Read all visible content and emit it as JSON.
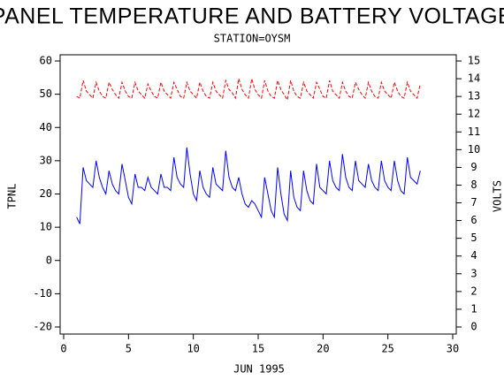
{
  "chart_data": {
    "type": "line",
    "title": "PANEL TEMPERATURE AND BATTERY VOLTAGE",
    "subtitle": "STATION=OYSM",
    "x_label": "JUN 1995",
    "y_label": "TPNL",
    "y2_label": "VOLTS",
    "xlim": [
      0,
      30
    ],
    "xticks": [
      0,
      5,
      10,
      15,
      20,
      25,
      30
    ],
    "ylim": [
      -20,
      60
    ],
    "yticks": [
      -20,
      -10,
      0,
      10,
      20,
      30,
      40,
      50,
      60
    ],
    "y2lim": [
      0,
      15
    ],
    "y2ticks": [
      0,
      1,
      2,
      3,
      4,
      5,
      6,
      7,
      8,
      9,
      10,
      11,
      12,
      13,
      14,
      15
    ],
    "x": [
      1,
      1.25,
      1.5,
      1.75,
      2,
      2.25,
      2.5,
      2.75,
      3,
      3.25,
      3.5,
      3.75,
      4,
      4.25,
      4.5,
      4.75,
      5,
      5.25,
      5.5,
      5.75,
      6,
      6.25,
      6.5,
      6.75,
      7,
      7.25,
      7.5,
      7.75,
      8,
      8.25,
      8.5,
      8.75,
      9,
      9.25,
      9.5,
      9.75,
      10,
      10.25,
      10.5,
      10.75,
      11,
      11.25,
      11.5,
      11.75,
      12,
      12.25,
      12.5,
      12.75,
      13,
      13.25,
      13.5,
      13.75,
      14,
      14.25,
      14.5,
      14.75,
      15,
      15.25,
      15.5,
      15.75,
      16,
      16.25,
      16.5,
      16.75,
      17,
      17.25,
      17.5,
      17.75,
      18,
      18.25,
      18.5,
      18.75,
      19,
      19.25,
      19.5,
      19.75,
      20,
      20.25,
      20.5,
      20.75,
      21,
      21.25,
      21.5,
      21.75,
      22,
      22.25,
      22.5,
      22.75,
      23,
      23.25,
      23.5,
      23.75,
      24,
      24.25,
      24.5,
      24.75,
      25,
      25.25,
      25.5,
      25.75,
      26,
      26.25,
      26.5,
      26.75,
      27,
      27.25,
      27.5
    ],
    "series": [
      {
        "name": "TPNL",
        "color": "#0000ff",
        "dashed": false,
        "values": [
          13,
          11,
          28,
          24,
          23,
          22,
          30,
          25,
          22,
          20,
          27,
          23,
          21,
          20,
          29,
          24,
          19,
          17,
          26,
          22,
          22,
          21,
          25,
          22,
          21,
          20,
          26,
          22,
          22,
          21,
          31,
          25,
          23,
          22,
          34,
          26,
          20,
          18,
          27,
          22,
          20,
          19,
          28,
          23,
          22,
          21,
          33,
          25,
          22,
          21,
          25,
          20,
          17,
          16,
          18,
          17,
          15,
          13,
          25,
          20,
          15,
          13,
          28,
          20,
          14,
          12,
          27,
          19,
          16,
          15,
          27,
          21,
          18,
          17,
          29,
          22,
          21,
          20,
          30,
          24,
          22,
          21,
          32,
          25,
          22,
          21,
          30,
          24,
          23,
          22,
          29,
          24,
          22,
          21,
          30,
          24,
          22,
          21,
          30,
          24,
          21,
          20,
          31,
          25,
          24,
          23,
          27
        ]
      },
      {
        "name": "VOLTS",
        "color": "#ff0000",
        "dashed": true,
        "axis": "y2",
        "values": [
          13,
          12.9,
          13.9,
          13.3,
          13.1,
          12.9,
          13.8,
          13.3,
          13,
          12.9,
          13.8,
          13.4,
          13.1,
          12.9,
          13.8,
          13.3,
          13,
          12.9,
          13.8,
          13.3,
          13.1,
          12.9,
          13.7,
          13.3,
          13,
          12.9,
          13.8,
          13.3,
          13.1,
          12.9,
          13.8,
          13.4,
          13,
          12.9,
          13.8,
          13.3,
          13.1,
          12.9,
          13.8,
          13.3,
          13,
          12.9,
          13.8,
          13.3,
          13.1,
          12.9,
          13.9,
          13.4,
          13.2,
          12.9,
          14,
          13.4,
          13.1,
          12.9,
          14,
          13.4,
          13.1,
          12.9,
          13.9,
          13.3,
          13,
          12.9,
          13.9,
          13.4,
          13.1,
          12.8,
          13.9,
          13.3,
          13,
          12.9,
          13.8,
          13.3,
          13.1,
          12.9,
          13.8,
          13.4,
          13,
          12.9,
          13.9,
          13.3,
          13.1,
          12.9,
          13.8,
          13.3,
          13,
          12.9,
          13.8,
          13.4,
          13.1,
          12.9,
          13.8,
          13.3,
          13,
          12.9,
          13.8,
          13.3,
          13.1,
          12.9,
          13.8,
          13.3,
          13,
          12.9,
          13.8,
          13.3,
          13.1,
          12.9,
          13.7
        ]
      }
    ]
  }
}
